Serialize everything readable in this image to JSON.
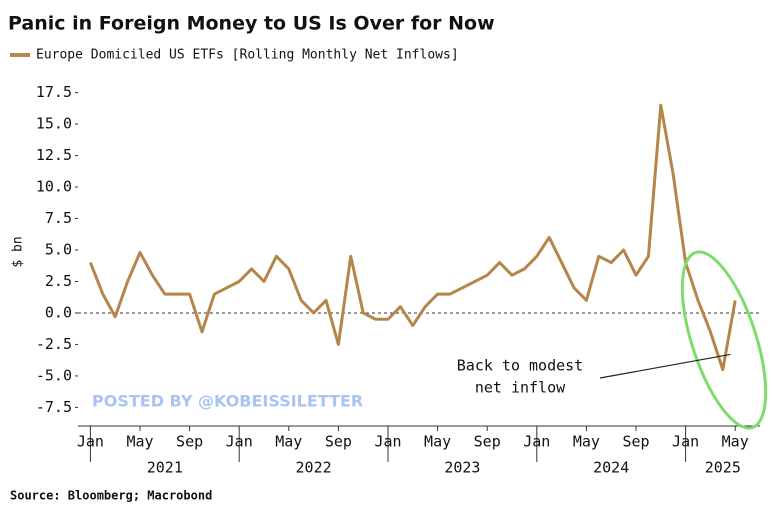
{
  "chart_data": {
    "type": "line",
    "title": "Panic in Foreign Money to US Is Over for Now",
    "y_label": "$ bn",
    "source": "Source: Bloomberg; Macrobond",
    "watermark": "POSTED BY @KOBEISSILETTER",
    "annotation": {
      "lines": [
        "Back to modest",
        "net inflow"
      ],
      "x": "2025-03",
      "y": -2.5
    },
    "reference_line": 0,
    "x": [
      "2021-01",
      "2021-02",
      "2021-03",
      "2021-04",
      "2021-05",
      "2021-06",
      "2021-07",
      "2021-08",
      "2021-09",
      "2021-10",
      "2021-11",
      "2021-12",
      "2022-01",
      "2022-02",
      "2022-03",
      "2022-04",
      "2022-05",
      "2022-06",
      "2022-07",
      "2022-08",
      "2022-09",
      "2022-10",
      "2022-11",
      "2022-12",
      "2023-01",
      "2023-02",
      "2023-03",
      "2023-04",
      "2023-05",
      "2023-06",
      "2023-07",
      "2023-08",
      "2023-09",
      "2023-10",
      "2023-11",
      "2023-12",
      "2024-01",
      "2024-02",
      "2024-03",
      "2024-04",
      "2024-05",
      "2024-06",
      "2024-07",
      "2024-08",
      "2024-09",
      "2024-10",
      "2024-11",
      "2024-12",
      "2025-01",
      "2025-02",
      "2025-03",
      "2025-04",
      "2025-05"
    ],
    "series": [
      {
        "name": "Europe Domiciled US ETFs [Rolling Monthly Net Inflows]",
        "color": "#b5854a",
        "values": [
          4.0,
          1.5,
          -0.3,
          2.5,
          4.8,
          3.0,
          1.5,
          1.5,
          1.5,
          -1.5,
          1.5,
          2.0,
          2.5,
          3.5,
          2.5,
          4.5,
          3.5,
          1.0,
          0.0,
          1.0,
          -2.5,
          4.5,
          0.0,
          -0.5,
          -0.5,
          0.5,
          -1.0,
          0.5,
          1.5,
          1.5,
          2.0,
          2.5,
          3.0,
          4.0,
          3.0,
          3.5,
          4.5,
          6.0,
          4.0,
          2.0,
          1.0,
          4.5,
          4.0,
          5.0,
          3.0,
          4.5,
          16.5,
          11.0,
          4.0,
          1.0,
          -1.5,
          -4.5,
          1.0
        ]
      }
    ],
    "xlim": [
      "2020-12",
      "2025-07"
    ],
    "xticks": [
      {
        "value": "2021-01",
        "label": "Jan"
      },
      {
        "value": "2021-05",
        "label": "May"
      },
      {
        "value": "2021-09",
        "label": "Sep"
      },
      {
        "value": "2022-01",
        "label": "Jan"
      },
      {
        "value": "2022-05",
        "label": "May"
      },
      {
        "value": "2022-09",
        "label": "Sep"
      },
      {
        "value": "2023-01",
        "label": "Jan"
      },
      {
        "value": "2023-05",
        "label": "May"
      },
      {
        "value": "2023-09",
        "label": "Sep"
      },
      {
        "value": "2024-01",
        "label": "Jan"
      },
      {
        "value": "2024-05",
        "label": "May"
      },
      {
        "value": "2024-09",
        "label": "Sep"
      },
      {
        "value": "2025-01",
        "label": "Jan"
      },
      {
        "value": "2025-05",
        "label": "May"
      }
    ],
    "year_labels": [
      {
        "value": "2021-07",
        "label": "2021"
      },
      {
        "value": "2022-07",
        "label": "2022"
      },
      {
        "value": "2023-07",
        "label": "2023"
      },
      {
        "value": "2024-07",
        "label": "2024"
      },
      {
        "value": "2025-04",
        "label": "2025"
      }
    ],
    "ylim": [
      -8.5,
      18.5
    ],
    "yticks": [
      -7.5,
      {
        "value": -5,
        "label": "-5.0"
      },
      -2.5,
      {
        "value": 0,
        "label": "0.0"
      },
      2.5,
      {
        "value": 5,
        "label": "5.0"
      },
      7.5,
      {
        "value": 10,
        "label": "10.0"
      },
      12.5,
      {
        "value": 15,
        "label": "15.0"
      },
      17.5
    ],
    "grid": false
  }
}
